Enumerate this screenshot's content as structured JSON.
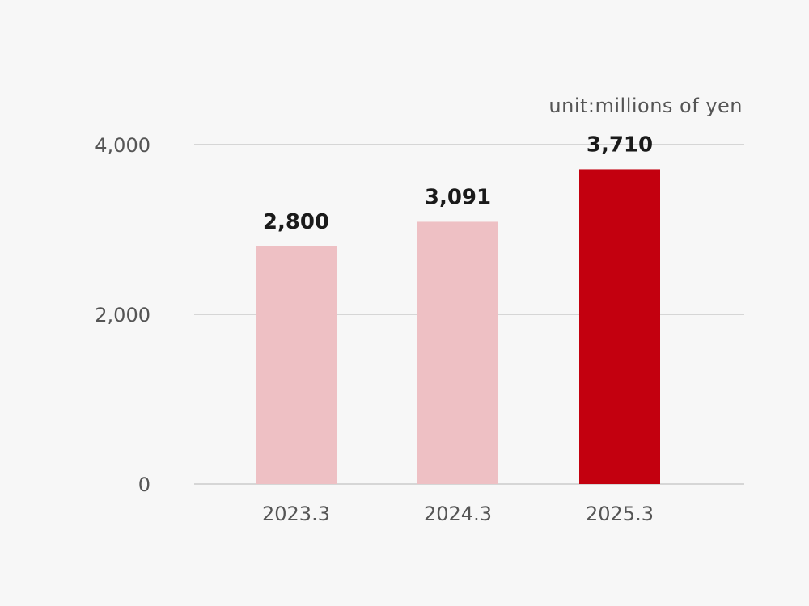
{
  "chart_data": {
    "type": "bar",
    "unit_label": "unit:millions of yen",
    "categories": [
      "2023.3",
      "2024.3",
      "2025.3"
    ],
    "values": [
      2800,
      3091,
      3710
    ],
    "value_labels": [
      "2,800",
      "3,091",
      "3,710"
    ],
    "ylim": [
      0,
      4000
    ],
    "y_ticks": [
      0,
      2000,
      4000
    ],
    "y_tick_labels": [
      "0",
      "2,000",
      "4,000"
    ],
    "grid": true,
    "legend": "none",
    "colors": {
      "default_bar": "#eec0c4",
      "highlight_bar": "#c3000f"
    },
    "highlight_index": 2
  }
}
